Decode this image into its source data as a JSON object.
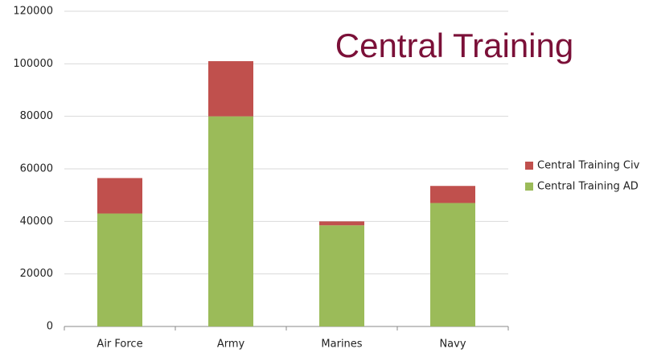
{
  "chart_data": {
    "type": "stacked_bar",
    "title": "Central Training",
    "categories": [
      "Air Force",
      "Army",
      "Marines",
      "Navy"
    ],
    "series": [
      {
        "name": "Central Training AD",
        "color": "#9bbb59",
        "values": [
          43000,
          80000,
          38500,
          47000
        ]
      },
      {
        "name": "Central Training Civ",
        "color": "#c0504d",
        "values": [
          13500,
          21000,
          1500,
          6500
        ]
      }
    ],
    "ylim": [
      0,
      120000
    ],
    "yticks": [
      0,
      20000,
      40000,
      60000,
      80000,
      100000,
      120000
    ],
    "grid": true
  }
}
